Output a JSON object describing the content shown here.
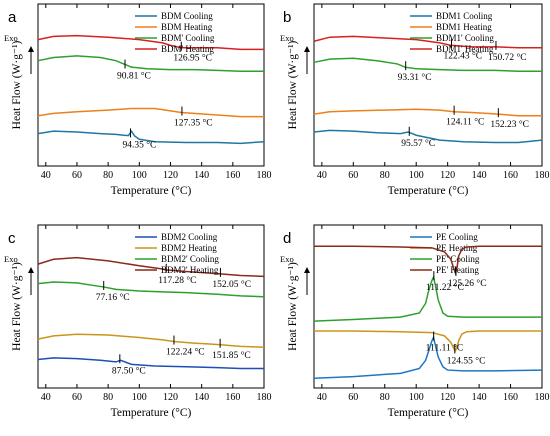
{
  "shared": {
    "xlabel": "Temperature (°C)",
    "ylabel": "Heat Flow (W·g⁻¹)",
    "exo_label": "Exo",
    "x_ticks": [
      40,
      60,
      80,
      100,
      120,
      140,
      160,
      180
    ],
    "xlim": [
      35,
      180
    ]
  },
  "chart_data": [
    {
      "type": "line",
      "panel": "a",
      "series": [
        {
          "name": "BDM Cooling",
          "color": "#1f77a4",
          "x": [
            35,
            45,
            60,
            75,
            85,
            90,
            93,
            95,
            97,
            100,
            110,
            130,
            150,
            165,
            180
          ],
          "y": [
            2.0,
            2.15,
            2.1,
            2.0,
            1.95,
            1.9,
            1.88,
            2.15,
            1.85,
            1.65,
            1.5,
            1.45,
            1.45,
            1.4,
            1.5
          ]
        },
        {
          "name": "BDM Heating",
          "color": "#f07f1a",
          "x": [
            35,
            45,
            60,
            80,
            95,
            110,
            120,
            127,
            135,
            150,
            165,
            180
          ],
          "y": [
            3.1,
            3.25,
            3.35,
            3.45,
            3.55,
            3.55,
            3.4,
            3.3,
            3.25,
            3.15,
            3.05,
            3.05
          ]
        },
        {
          "name": "BDM' Cooling",
          "color": "#2ea02c",
          "x": [
            35,
            45,
            60,
            75,
            85,
            90,
            95,
            105,
            120,
            135,
            150,
            165,
            180
          ],
          "y": [
            6.5,
            6.7,
            6.8,
            6.7,
            6.5,
            6.3,
            6.1,
            6.0,
            5.95,
            5.95,
            5.9,
            5.85,
            5.85
          ]
        },
        {
          "name": "BDM' Heating",
          "color": "#d6221f",
          "x": [
            35,
            45,
            60,
            80,
            100,
            115,
            120,
            127,
            135,
            150,
            165,
            180
          ],
          "y": [
            7.8,
            8.0,
            8.05,
            7.95,
            7.8,
            7.6,
            7.45,
            7.3,
            7.3,
            7.3,
            7.2,
            7.2
          ]
        }
      ],
      "annotations": [
        {
          "text": "126.95 °C",
          "x": 126.95,
          "y": 7.3
        },
        {
          "text": "90.81 °C",
          "x": 90.81,
          "y": 6.2
        },
        {
          "text": "127.35 °C",
          "x": 127.35,
          "y": 3.3
        },
        {
          "text": "94.35 °C",
          "x": 94.35,
          "y": 1.95
        }
      ],
      "ylim": [
        0,
        10
      ]
    },
    {
      "type": "line",
      "panel": "b",
      "series": [
        {
          "name": "BDM1 Cooling",
          "color": "#1f77a4",
          "x": [
            35,
            45,
            60,
            75,
            90,
            95,
            100,
            115,
            130,
            150,
            165,
            180
          ],
          "y": [
            2.1,
            2.2,
            2.15,
            2.05,
            2.0,
            2.1,
            1.9,
            1.6,
            1.5,
            1.45,
            1.45,
            1.6
          ]
        },
        {
          "name": "BDM1 Heating",
          "color": "#f07f1a",
          "x": [
            35,
            45,
            60,
            80,
            100,
            115,
            124,
            135,
            145,
            152,
            165,
            180
          ],
          "y": [
            3.2,
            3.35,
            3.4,
            3.45,
            3.5,
            3.45,
            3.35,
            3.3,
            3.25,
            3.2,
            3.1,
            3.1
          ]
        },
        {
          "name": "BDM1' Cooling",
          "color": "#2ea02c",
          "x": [
            35,
            45,
            60,
            75,
            88,
            93,
            100,
            115,
            130,
            150,
            165,
            180
          ],
          "y": [
            6.4,
            6.6,
            6.65,
            6.5,
            6.3,
            6.1,
            6.0,
            5.95,
            5.9,
            5.9,
            5.85,
            5.85
          ]
        },
        {
          "name": "BDM1' Heating",
          "color": "#d6221f",
          "x": [
            35,
            45,
            60,
            80,
            100,
            115,
            122,
            135,
            145,
            151,
            165,
            180
          ],
          "y": [
            7.7,
            7.95,
            8.0,
            7.9,
            7.8,
            7.6,
            7.45,
            7.35,
            7.35,
            7.35,
            7.3,
            7.3
          ]
        }
      ],
      "annotations": [
        {
          "text": "122.43 °C",
          "x": 122.43,
          "y": 7.45
        },
        {
          "text": "150.72 °C",
          "x": 150.72,
          "y": 7.35
        },
        {
          "text": "93.31 °C",
          "x": 93.31,
          "y": 6.1
        },
        {
          "text": "124.11 °C",
          "x": 124.11,
          "y": 3.35
        },
        {
          "text": "152.23 °C",
          "x": 152.23,
          "y": 3.2
        },
        {
          "text": "95.57 °C",
          "x": 95.57,
          "y": 2.05
        }
      ],
      "ylim": [
        0,
        10
      ]
    },
    {
      "type": "line",
      "panel": "c",
      "series": [
        {
          "name": "BDM2 Cooling",
          "color": "#1f4fb4",
          "x": [
            35,
            45,
            60,
            75,
            85,
            88,
            95,
            110,
            130,
            150,
            165,
            180
          ],
          "y": [
            1.75,
            1.85,
            1.8,
            1.7,
            1.6,
            1.7,
            1.45,
            1.35,
            1.3,
            1.25,
            1.2,
            1.2
          ]
        },
        {
          "name": "BDM2 Heating",
          "color": "#c9961a",
          "x": [
            35,
            45,
            60,
            80,
            100,
            115,
            122,
            135,
            145,
            152,
            165,
            180
          ],
          "y": [
            3.0,
            3.2,
            3.3,
            3.25,
            3.1,
            2.95,
            2.85,
            2.75,
            2.7,
            2.65,
            2.55,
            2.5
          ]
        },
        {
          "name": "BDM2' Cooling",
          "color": "#2ea02c",
          "x": [
            35,
            45,
            60,
            70,
            77,
            85,
            100,
            115,
            130,
            150,
            165,
            180
          ],
          "y": [
            6.4,
            6.5,
            6.45,
            6.3,
            6.2,
            6.05,
            5.95,
            5.9,
            5.85,
            5.75,
            5.65,
            5.6
          ]
        },
        {
          "name": "BDM2' Heating",
          "color": "#8b2a1a",
          "x": [
            35,
            45,
            60,
            80,
            100,
            115,
            117,
            130,
            145,
            152,
            165,
            180
          ],
          "y": [
            7.6,
            7.9,
            8.0,
            7.8,
            7.5,
            7.3,
            7.25,
            7.15,
            7.05,
            7.0,
            6.9,
            6.85
          ]
        }
      ],
      "annotations": [
        {
          "text": "117.28 °C",
          "x": 117.28,
          "y": 7.25
        },
        {
          "text": "152.05 °C",
          "x": 152.05,
          "y": 7.0
        },
        {
          "text": "77.16 °C",
          "x": 77.16,
          "y": 6.2
        },
        {
          "text": "122.24 °C",
          "x": 122.24,
          "y": 2.85
        },
        {
          "text": "151.85 °C",
          "x": 151.85,
          "y": 2.65
        },
        {
          "text": "87.50 °C",
          "x": 87.5,
          "y": 1.7
        }
      ],
      "ylim": [
        0,
        10
      ]
    },
    {
      "type": "line",
      "panel": "d",
      "series": [
        {
          "name": "PE Cooling",
          "color": "#1f77c4",
          "x": [
            35,
            60,
            90,
            102,
            106,
            108,
            110,
            111,
            112,
            114,
            117,
            120,
            130,
            150,
            180
          ],
          "y": [
            0.6,
            0.7,
            0.9,
            1.2,
            1.7,
            2.3,
            2.9,
            3.1,
            2.7,
            1.9,
            1.3,
            1.1,
            1.05,
            1.05,
            1.1
          ]
        },
        {
          "name": "PE Heating",
          "color": "#c9961a",
          "x": [
            35,
            60,
            90,
            110,
            118,
            122,
            124,
            125,
            126,
            127,
            129,
            132,
            140,
            160,
            180
          ],
          "y": [
            3.5,
            3.5,
            3.45,
            3.4,
            3.2,
            2.8,
            2.4,
            2.3,
            2.5,
            2.9,
            3.3,
            3.45,
            3.5,
            3.5,
            3.5
          ]
        },
        {
          "name": "PE' Cooling",
          "color": "#2ea02c",
          "x": [
            35,
            60,
            90,
            102,
            106,
            108,
            110,
            111,
            112,
            114,
            117,
            120,
            130,
            150,
            180
          ],
          "y": [
            4.1,
            4.2,
            4.35,
            4.6,
            5.2,
            6.0,
            6.6,
            6.8,
            6.4,
            5.4,
            4.6,
            4.4,
            4.35,
            4.35,
            4.35
          ]
        },
        {
          "name": "PE' Heating",
          "color": "#8b2a1a",
          "x": [
            35,
            60,
            90,
            110,
            118,
            122,
            124,
            125,
            126,
            127,
            129,
            132,
            140,
            160,
            180
          ],
          "y": [
            8.7,
            8.7,
            8.65,
            8.6,
            8.35,
            7.9,
            7.3,
            7.05,
            7.4,
            8.1,
            8.5,
            8.65,
            8.7,
            8.7,
            8.7
          ]
        }
      ],
      "annotations": [
        {
          "text": "111.22 °C",
          "x": 111.22,
          "y": 6.8
        },
        {
          "text": "125.26 °C",
          "x": 125.26,
          "y": 7.05
        },
        {
          "text": "111.11 °C",
          "x": 111.11,
          "y": 3.1
        },
        {
          "text": "124.55 °C",
          "x": 124.55,
          "y": 2.3
        }
      ],
      "ylim": [
        0,
        10
      ]
    }
  ]
}
